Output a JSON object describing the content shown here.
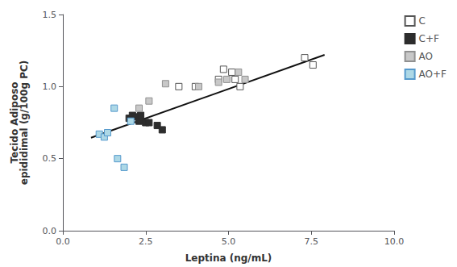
{
  "chart_data": {
    "type": "scatter",
    "xlabel": "Leptina (ng/mL)",
    "ylabel": "Tecido Adiposo\nepididimal (g/100g PC)",
    "xlim": [
      0.0,
      10.0
    ],
    "ylim": [
      0.0,
      1.5
    ],
    "xticks": [
      {
        "value": 0.0,
        "label": "0.0"
      },
      2.5,
      {
        "value": 5.0,
        "label": "5.0"
      },
      7.5,
      {
        "value": 10.0,
        "label": "10.0"
      }
    ],
    "yticks": [
      {
        "value": 0.0,
        "label": "0.0"
      },
      0.5,
      {
        "value": 1.0,
        "label": "1.0"
      },
      1.5
    ],
    "grid": false,
    "legend": "right",
    "marker": "square",
    "series": [
      {
        "name": "C",
        "type": "scatter",
        "color": "#ffffff",
        "edgecolor": "#555555",
        "x": [
          3.5,
          4.0,
          4.7,
          4.85,
          5.1,
          5.2,
          5.35,
          7.3,
          7.55
        ],
        "y": [
          1.0,
          1.0,
          1.05,
          1.12,
          1.1,
          1.05,
          1.0,
          1.2,
          1.15
        ]
      },
      {
        "name": "C+F",
        "type": "scatter",
        "color": "#2d2d2d",
        "edgecolor": "#2d2d2d",
        "x": [
          2.0,
          2.1,
          2.2,
          2.3,
          2.35,
          2.5,
          2.6,
          2.85,
          3.0
        ],
        "y": [
          0.78,
          0.8,
          0.79,
          0.76,
          0.8,
          0.75,
          0.75,
          0.73,
          0.7
        ]
      },
      {
        "name": "AO",
        "type": "scatter",
        "color": "#c8c8c8",
        "edgecolor": "#909090",
        "x": [
          2.3,
          2.6,
          3.1,
          4.1,
          4.7,
          4.95,
          5.3,
          5.5
        ],
        "y": [
          0.85,
          0.9,
          1.02,
          1.0,
          1.03,
          1.05,
          1.1,
          1.05
        ]
      },
      {
        "name": "AO+F",
        "type": "scatter",
        "color": "#add8e6",
        "edgecolor": "#5599cc",
        "x": [
          1.1,
          1.25,
          1.35,
          1.55,
          1.65,
          1.85,
          2.05
        ],
        "y": [
          0.67,
          0.65,
          0.68,
          0.85,
          0.5,
          0.44,
          0.76
        ]
      },
      {
        "type": "line",
        "color": "#111111",
        "x": [
          0.85,
          7.9
        ],
        "y": [
          0.645,
          1.22
        ]
      }
    ]
  }
}
